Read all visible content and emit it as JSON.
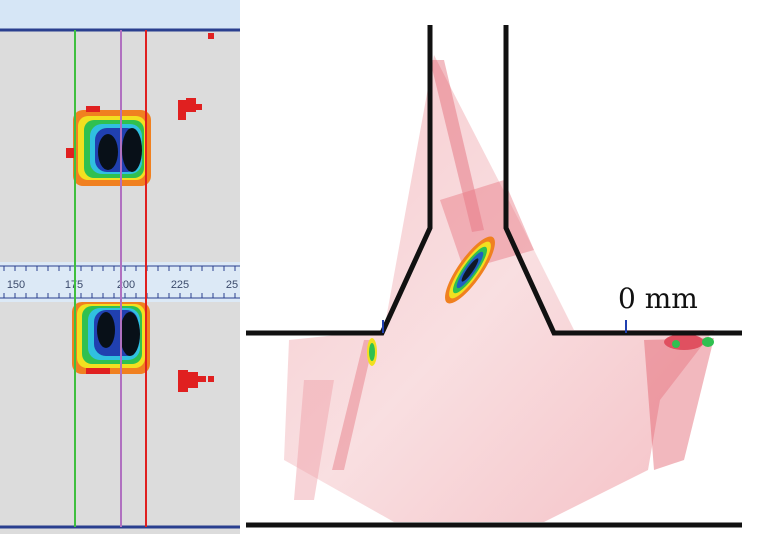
{
  "left_panel": {
    "scale_ticks": [
      "150",
      "175",
      "200",
      "225",
      "25"
    ]
  },
  "right_panel": {
    "zero_label": "0 mm"
  },
  "colors": {
    "background": "#dcdcdc",
    "header": "#d6e6f6",
    "scale_band": "#dce9f6",
    "cursor_green": "#3fbf3f",
    "cursor_purple": "#b070c0",
    "cursor_red": "#e02020",
    "weld_outline": "#111111",
    "scan_pink": "#f2c2c6"
  }
}
